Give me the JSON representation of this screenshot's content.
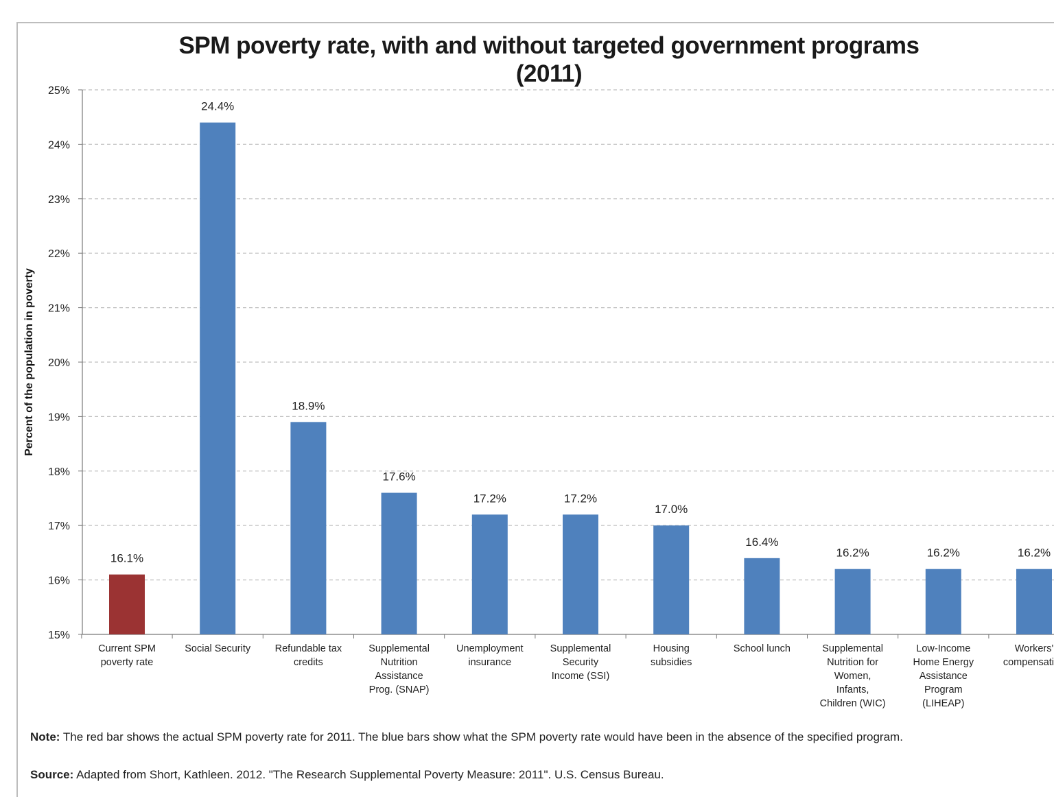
{
  "chart_data": {
    "type": "bar",
    "title": "SPM poverty rate, with and without targeted government programs",
    "subtitle": "(2011)",
    "xlabel": "",
    "ylabel": "Percent of the population in poverty",
    "ylim": [
      15,
      25
    ],
    "yticks": [
      "15%",
      "16%",
      "17%",
      "18%",
      "19%",
      "20%",
      "21%",
      "22%",
      "23%",
      "24%",
      "25%"
    ],
    "grid": true,
    "categories": [
      [
        "Current SPM",
        "poverty rate"
      ],
      [
        "Social Security"
      ],
      [
        "Refundable tax",
        "credits"
      ],
      [
        "Supplemental",
        "Nutrition",
        "Assistance",
        "Prog. (SNAP)"
      ],
      [
        "Unemployment",
        "insurance"
      ],
      [
        "Supplemental",
        "Security",
        "Income (SSI)"
      ],
      [
        "Housing",
        "subsidies"
      ],
      [
        "School lunch"
      ],
      [
        "Supplemental",
        "Nutrition for",
        "Women,",
        "Infants,",
        "Children (WIC)"
      ],
      [
        "Low-Income",
        "Home Energy",
        "Assistance",
        "Program",
        "(LIHEAP)"
      ],
      [
        "Workers'",
        "compensation"
      ]
    ],
    "values": [
      16.1,
      24.4,
      18.9,
      17.6,
      17.2,
      17.2,
      17.0,
      16.4,
      16.2,
      16.2,
      16.2
    ],
    "data_labels": [
      "16.1%",
      "24.4%",
      "18.9%",
      "17.6%",
      "17.2%",
      "17.2%",
      "17.0%",
      "16.4%",
      "16.2%",
      "16.2%",
      "16.2%"
    ],
    "colors": [
      "#9b3333",
      "#4f81bd",
      "#4f81bd",
      "#4f81bd",
      "#4f81bd",
      "#4f81bd",
      "#4f81bd",
      "#4f81bd",
      "#4f81bd",
      "#4f81bd",
      "#4f81bd"
    ]
  },
  "note": {
    "lead": "Note:",
    "text": " The red bar shows the actual SPM poverty rate for 2011. The blue bars show what the SPM poverty rate would have been in the absence of the specified program."
  },
  "source": {
    "lead": "Source:",
    "text": " Adapted from Short, Kathleen. 2012. \"The Research Supplemental Poverty Measure: 2011\". U.S. Census Bureau."
  }
}
